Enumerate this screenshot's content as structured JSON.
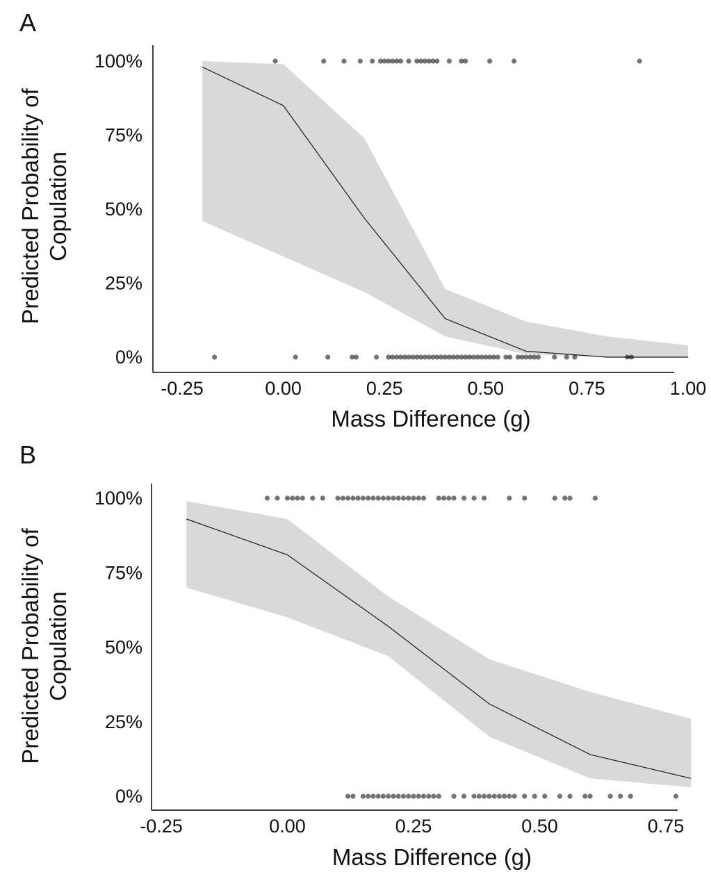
{
  "panels": [
    {
      "letter": "A"
    },
    {
      "letter": "B"
    }
  ],
  "chart_data": [
    {
      "type": "line",
      "panel": "A",
      "xlabel": "Mass Difference (g)",
      "ylabel_lines": [
        "Predicted Probability of",
        "Copulation"
      ],
      "xlim": [
        -0.25,
        1.0
      ],
      "ylim": [
        0,
        1
      ],
      "xticks": [
        -0.25,
        0.0,
        0.25,
        0.5,
        0.75,
        1.0
      ],
      "xtick_labels": [
        "-0.25",
        "0.00",
        "0.25",
        "0.50",
        "0.75",
        "1.00"
      ],
      "yticks": [
        0,
        0.25,
        0.5,
        0.75,
        1.0
      ],
      "ytick_labels": [
        "0%",
        "25%",
        "50%",
        "75%",
        "100%"
      ],
      "grid": false,
      "series": [
        {
          "x": [
            -0.2,
            0.0,
            0.2,
            0.4,
            0.6,
            0.8,
            1.0
          ],
          "y": [
            0.98,
            0.85,
            0.47,
            0.13,
            0.02,
            0.0,
            0.0
          ],
          "ci_lower": [
            0.46,
            0.34,
            0.22,
            0.07,
            0.01,
            0.0,
            0.0
          ],
          "ci_upper": [
            1.0,
            0.99,
            0.74,
            0.23,
            0.12,
            0.07,
            0.04
          ]
        }
      ],
      "points_top": {
        "y": 1.0,
        "x": [
          -0.02,
          0.1,
          0.15,
          0.19,
          0.22,
          0.24,
          0.25,
          0.26,
          0.27,
          0.28,
          0.29,
          0.31,
          0.33,
          0.34,
          0.35,
          0.36,
          0.37,
          0.38,
          0.41,
          0.44,
          0.45,
          0.51,
          0.57,
          0.88
        ]
      },
      "points_bottom": {
        "y": 0.0,
        "x": [
          -0.17,
          0.03,
          0.11,
          0.17,
          0.18,
          0.23,
          0.26,
          0.27,
          0.28,
          0.29,
          0.3,
          0.31,
          0.32,
          0.33,
          0.34,
          0.35,
          0.36,
          0.37,
          0.38,
          0.39,
          0.4,
          0.41,
          0.42,
          0.43,
          0.44,
          0.45,
          0.46,
          0.47,
          0.48,
          0.49,
          0.5,
          0.51,
          0.52,
          0.53,
          0.55,
          0.56,
          0.58,
          0.59,
          0.6,
          0.61,
          0.62,
          0.63,
          0.67,
          0.7,
          0.72,
          0.85,
          0.86
        ]
      }
    },
    {
      "type": "line",
      "panel": "B",
      "xlabel": "Mass Difference (g)",
      "ylabel_lines": [
        "Predicted Probability of",
        "Copulation"
      ],
      "xlim": [
        -0.25,
        0.75
      ],
      "ylim": [
        0,
        1
      ],
      "xticks": [
        -0.25,
        0.0,
        0.25,
        0.5,
        0.75
      ],
      "xtick_labels": [
        "-0.25",
        "0.00",
        "0.25",
        "0.50",
        "0.75"
      ],
      "yticks": [
        0,
        0.25,
        0.5,
        0.75,
        1.0
      ],
      "ytick_labels": [
        "0%",
        "25%",
        "50%",
        "75%",
        "100%"
      ],
      "grid": false,
      "series": [
        {
          "x": [
            -0.2,
            0.0,
            0.2,
            0.4,
            0.6,
            0.8
          ],
          "y": [
            0.93,
            0.81,
            0.57,
            0.31,
            0.14,
            0.06
          ],
          "ci_lower": [
            0.7,
            0.6,
            0.47,
            0.2,
            0.06,
            0.03
          ],
          "ci_upper": [
            0.99,
            0.93,
            0.67,
            0.46,
            0.35,
            0.26
          ]
        }
      ],
      "points_top": {
        "y": 1.0,
        "x": [
          -0.04,
          -0.02,
          0.0,
          0.01,
          0.02,
          0.03,
          0.05,
          0.07,
          0.1,
          0.11,
          0.12,
          0.13,
          0.14,
          0.15,
          0.16,
          0.17,
          0.18,
          0.19,
          0.2,
          0.21,
          0.22,
          0.23,
          0.24,
          0.25,
          0.26,
          0.27,
          0.3,
          0.31,
          0.32,
          0.33,
          0.35,
          0.37,
          0.39,
          0.44,
          0.47,
          0.53,
          0.55,
          0.56,
          0.61
        ]
      },
      "points_bottom": {
        "y": 0.0,
        "x": [
          0.12,
          0.13,
          0.15,
          0.16,
          0.17,
          0.18,
          0.19,
          0.2,
          0.21,
          0.22,
          0.23,
          0.24,
          0.25,
          0.26,
          0.27,
          0.28,
          0.29,
          0.3,
          0.33,
          0.35,
          0.37,
          0.38,
          0.39,
          0.4,
          0.41,
          0.42,
          0.43,
          0.44,
          0.45,
          0.47,
          0.49,
          0.51,
          0.54,
          0.56,
          0.59,
          0.6,
          0.64,
          0.66,
          0.68,
          0.77
        ]
      }
    }
  ]
}
